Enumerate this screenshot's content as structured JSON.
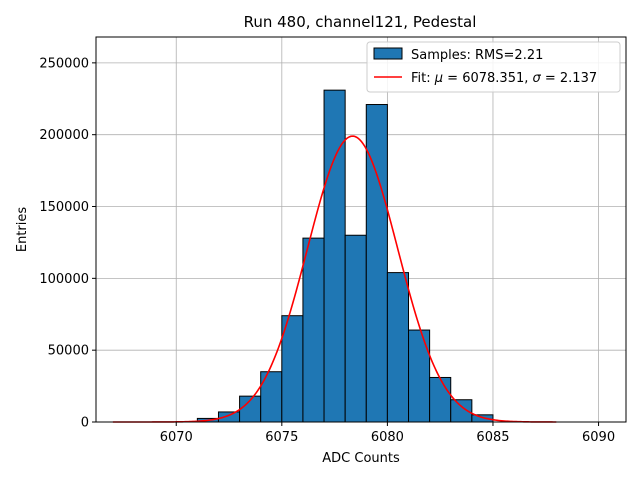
{
  "chart_data": {
    "type": "bar",
    "title": "Run 480, channel121, Pedestal",
    "xlabel": "ADC Counts",
    "ylabel": "Entries",
    "xlim": [
      6066.2,
      6091.3
    ],
    "ylim": [
      0,
      268000
    ],
    "xticks": [
      6070,
      6075,
      6080,
      6085,
      6090
    ],
    "yticks": [
      0,
      50000,
      100000,
      150000,
      200000,
      250000
    ],
    "grid": true,
    "legend_position": "top-right",
    "bar_color": "#1f77b4",
    "fit_color": "#ff0000",
    "histogram": {
      "name": "Samples: RMS=2.21",
      "bin_width": 1,
      "bin_starts": [
        6071,
        6072,
        6073,
        6074,
        6075,
        6076,
        6077,
        6078,
        6079,
        6080,
        6081,
        6082,
        6083,
        6084
      ],
      "values": [
        2500,
        7000,
        18000,
        35000,
        74000,
        128000,
        231000,
        130000,
        221000,
        104000,
        64000,
        31000,
        15500,
        5000
      ]
    },
    "fit": {
      "name_prefix": "Fit: ",
      "name_mu": "μ",
      "name_mid": " = 6078.351, ",
      "name_sigma": "σ",
      "name_suffix": " = 2.137",
      "mu": 6078.351,
      "sigma": 2.137,
      "amplitude": 199000,
      "x_range": [
        6067,
        6088
      ]
    }
  }
}
